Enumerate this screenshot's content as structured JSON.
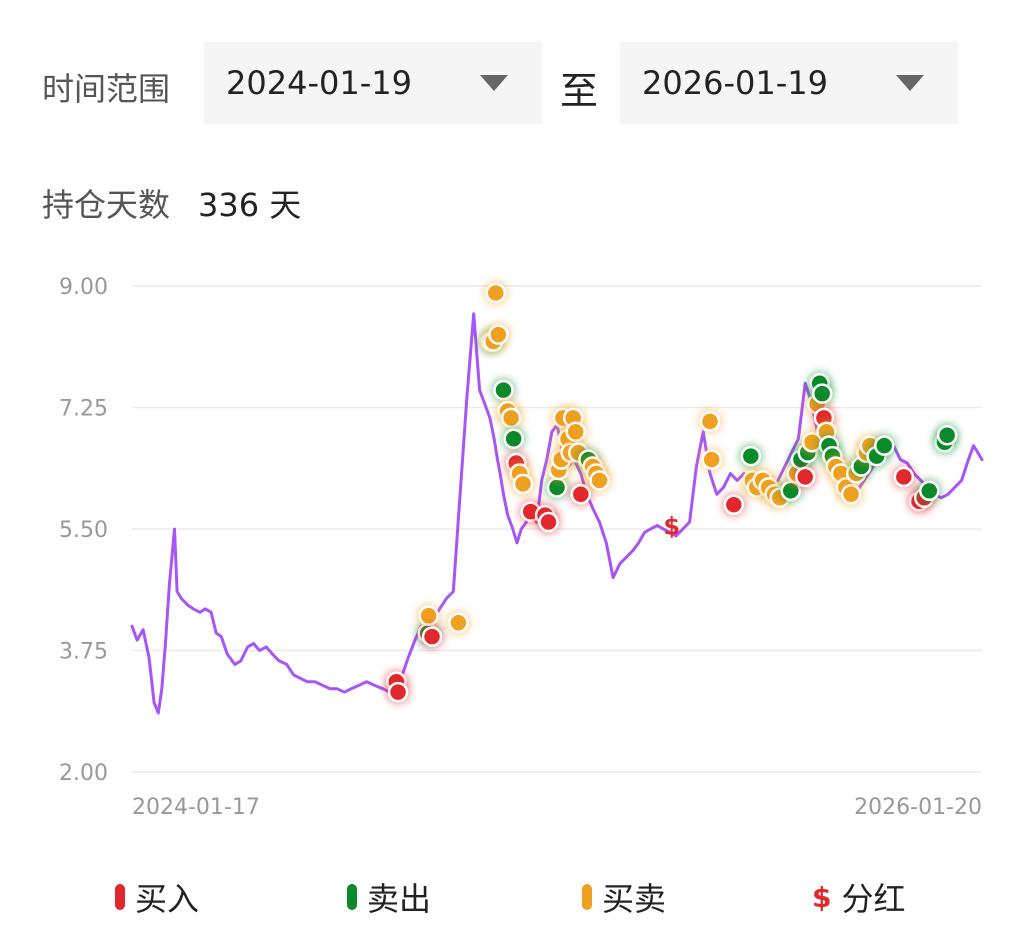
{
  "filter": {
    "label": "时间范围",
    "start_date": "2024-01-19",
    "separator": "至",
    "end_date": "2026-01-19"
  },
  "holding": {
    "label": "持仓天数",
    "value": "336 天"
  },
  "colors": {
    "line": "#a855f7",
    "buy": "#e0282d",
    "sell": "#0a8a2a",
    "both": "#f0a020",
    "dividend": "#e0282d",
    "grid": "#ececec",
    "axis_text": "#999999"
  },
  "legend": [
    {
      "type": "buy",
      "label": "买入"
    },
    {
      "type": "sell",
      "label": "卖出"
    },
    {
      "type": "both",
      "label": "买卖"
    },
    {
      "type": "dividend",
      "label": "分红"
    }
  ],
  "chart_data": {
    "type": "line",
    "x_start_label": "2024-01-17",
    "x_end_label": "2026-01-20",
    "ylim": [
      2.0,
      9.0
    ],
    "yticks": [
      "9.00",
      "7.25",
      "5.50",
      "3.75",
      "2.00"
    ],
    "grid": true,
    "x_range": [
      0,
      100
    ],
    "series": [
      {
        "x": [
          0,
          0.6,
          1.3,
          2.0,
          2.6,
          3.1,
          3.5,
          3.9,
          4.4,
          5.0,
          5.3,
          5.8,
          6.2,
          6.6,
          7.2,
          8.0,
          8.6,
          9.3,
          9.9,
          10.5,
          11.2,
          12.1,
          12.8,
          13.6,
          14.3,
          15.0,
          15.8,
          16.5,
          17.3,
          18.2,
          19.0,
          19.8,
          20.6,
          21.5,
          22.4,
          23.3,
          24.1,
          25.0,
          25.8,
          26.7,
          27.6,
          28.5,
          29.5,
          30.3,
          31.0,
          31.8,
          32.5,
          33.3,
          34.0,
          34.7,
          35.4,
          36.2,
          37.0,
          37.8,
          38.6,
          39.4,
          40.2,
          40.9,
          41.5,
          42.1,
          42.6,
          43.0,
          43.3,
          43.7,
          44.2,
          44.8,
          45.3,
          45.8,
          46.4,
          47.0,
          47.6,
          48.2,
          48.8,
          49.4,
          50.0,
          50.7,
          51.3,
          52.0,
          52.8,
          53.5,
          54.2,
          55.0,
          55.8,
          56.6,
          57.4,
          58.2,
          59.0,
          59.6,
          60.3,
          61.0,
          61.8,
          62.5,
          63.3,
          64.0,
          64.8,
          65.6,
          66.4,
          67.2,
          68.0,
          68.8,
          69.6,
          70.4,
          71.2,
          72.0,
          72.8,
          73.6,
          74.4,
          75.2,
          76.0,
          76.8,
          77.6,
          78.4,
          79.2,
          80.0,
          80.8,
          81.6,
          82.4,
          83.2,
          84.0,
          84.8,
          85.6,
          86.4,
          87.2,
          88.0,
          88.8,
          89.6,
          90.4,
          91.2,
          92.0,
          92.8,
          93.6,
          94.4,
          95.2,
          96.0,
          96.8,
          97.6,
          98.4,
          99.0,
          99.5,
          100
        ],
        "y": [
          4.1,
          3.9,
          4.05,
          3.65,
          3.0,
          2.85,
          3.2,
          3.8,
          4.7,
          5.5,
          4.6,
          4.5,
          4.45,
          4.4,
          4.35,
          4.3,
          4.35,
          4.3,
          4.0,
          3.95,
          3.7,
          3.55,
          3.6,
          3.8,
          3.85,
          3.75,
          3.8,
          3.7,
          3.6,
          3.55,
          3.4,
          3.35,
          3.3,
          3.3,
          3.25,
          3.2,
          3.2,
          3.15,
          3.2,
          3.25,
          3.3,
          3.25,
          3.2,
          3.15,
          3.25,
          3.4,
          3.65,
          3.9,
          4.1,
          4.0,
          4.2,
          4.35,
          4.5,
          4.6,
          6.0,
          7.4,
          8.6,
          7.5,
          7.3,
          7.1,
          6.8,
          6.5,
          6.3,
          6.0,
          5.7,
          5.5,
          5.3,
          5.5,
          5.6,
          5.8,
          5.6,
          6.2,
          6.5,
          6.9,
          7.0,
          6.6,
          6.4,
          6.5,
          6.3,
          6.0,
          5.8,
          5.6,
          5.3,
          4.8,
          5.0,
          5.1,
          5.2,
          5.3,
          5.45,
          5.5,
          5.55,
          5.5,
          5.45,
          5.4,
          5.5,
          5.6,
          6.4,
          6.9,
          6.3,
          6.0,
          6.1,
          6.3,
          6.2,
          6.3,
          6.1,
          6.0,
          6.0,
          6.1,
          6.2,
          6.4,
          6.6,
          6.8,
          7.6,
          7.3,
          6.8,
          6.6,
          6.4,
          6.3,
          6.1,
          6.0,
          6.1,
          6.25,
          6.4,
          6.5,
          6.6,
          6.7,
          6.5,
          6.45,
          6.3,
          6.2,
          6.1,
          6.0,
          5.95,
          6.0,
          6.1,
          6.2,
          6.5,
          6.7,
          6.6,
          6.5
        ],
        "markers": [
          {
            "x": 31.1,
            "y": 3.3,
            "type": "buy"
          },
          {
            "x": 31.3,
            "y": 3.15,
            "type": "buy"
          },
          {
            "x": 34.8,
            "y": 4.0,
            "type": "sell"
          },
          {
            "x": 34.9,
            "y": 4.25,
            "type": "both"
          },
          {
            "x": 35.3,
            "y": 3.95,
            "type": "buy"
          },
          {
            "x": 38.4,
            "y": 4.15,
            "type": "both"
          },
          {
            "x": 42.2,
            "y": 8.2,
            "type": "sell"
          },
          {
            "x": 42.5,
            "y": 8.2,
            "type": "both"
          },
          {
            "x": 42.8,
            "y": 8.9,
            "type": "both"
          },
          {
            "x": 43.1,
            "y": 8.3,
            "type": "both"
          },
          {
            "x": 43.7,
            "y": 7.5,
            "type": "sell"
          },
          {
            "x": 44.2,
            "y": 7.2,
            "type": "both"
          },
          {
            "x": 44.6,
            "y": 7.1,
            "type": "both"
          },
          {
            "x": 44.9,
            "y": 6.8,
            "type": "sell"
          },
          {
            "x": 45.2,
            "y": 6.45,
            "type": "buy"
          },
          {
            "x": 45.6,
            "y": 6.3,
            "type": "both"
          },
          {
            "x": 46.0,
            "y": 6.15,
            "type": "both"
          },
          {
            "x": 46.9,
            "y": 5.75,
            "type": "buy"
          },
          {
            "x": 48.6,
            "y": 5.7,
            "type": "buy"
          },
          {
            "x": 49.0,
            "y": 5.6,
            "type": "buy"
          },
          {
            "x": 50.0,
            "y": 6.1,
            "type": "sell"
          },
          {
            "x": 50.2,
            "y": 6.35,
            "type": "both"
          },
          {
            "x": 50.5,
            "y": 6.5,
            "type": "both"
          },
          {
            "x": 50.7,
            "y": 7.1,
            "type": "both"
          },
          {
            "x": 51.3,
            "y": 6.8,
            "type": "both"
          },
          {
            "x": 51.6,
            "y": 6.6,
            "type": "both"
          },
          {
            "x": 51.9,
            "y": 7.1,
            "type": "both"
          },
          {
            "x": 52.2,
            "y": 6.9,
            "type": "both"
          },
          {
            "x": 52.5,
            "y": 6.6,
            "type": "both"
          },
          {
            "x": 52.8,
            "y": 6.0,
            "type": "buy"
          },
          {
            "x": 53.7,
            "y": 6.5,
            "type": "sell"
          },
          {
            "x": 54.2,
            "y": 6.4,
            "type": "both"
          },
          {
            "x": 54.6,
            "y": 6.3,
            "type": "both"
          },
          {
            "x": 55.0,
            "y": 6.2,
            "type": "both"
          },
          {
            "x": 68.0,
            "y": 7.05,
            "type": "both"
          },
          {
            "x": 68.2,
            "y": 6.5,
            "type": "both"
          },
          {
            "x": 70.8,
            "y": 5.85,
            "type": "buy"
          },
          {
            "x": 72.8,
            "y": 6.55,
            "type": "sell"
          },
          {
            "x": 73.0,
            "y": 6.2,
            "type": "both"
          },
          {
            "x": 73.5,
            "y": 6.1,
            "type": "both"
          },
          {
            "x": 74.2,
            "y": 6.2,
            "type": "both"
          },
          {
            "x": 74.9,
            "y": 6.1,
            "type": "both"
          },
          {
            "x": 75.6,
            "y": 6.0,
            "type": "both"
          },
          {
            "x": 76.2,
            "y": 5.95,
            "type": "both"
          },
          {
            "x": 77.5,
            "y": 6.05,
            "type": "sell"
          },
          {
            "x": 78.2,
            "y": 6.3,
            "type": "both"
          },
          {
            "x": 78.7,
            "y": 6.5,
            "type": "sell"
          },
          {
            "x": 79.2,
            "y": 6.25,
            "type": "buy"
          },
          {
            "x": 79.5,
            "y": 6.6,
            "type": "sell"
          },
          {
            "x": 80.0,
            "y": 6.75,
            "type": "both"
          },
          {
            "x": 80.6,
            "y": 7.3,
            "type": "both"
          },
          {
            "x": 80.9,
            "y": 7.6,
            "type": "sell"
          },
          {
            "x": 81.2,
            "y": 7.45,
            "type": "sell"
          },
          {
            "x": 81.4,
            "y": 7.1,
            "type": "buy"
          },
          {
            "x": 81.7,
            "y": 6.9,
            "type": "both"
          },
          {
            "x": 82.0,
            "y": 6.7,
            "type": "sell"
          },
          {
            "x": 82.4,
            "y": 6.55,
            "type": "sell"
          },
          {
            "x": 82.8,
            "y": 6.4,
            "type": "both"
          },
          {
            "x": 83.4,
            "y": 6.3,
            "type": "both"
          },
          {
            "x": 84.0,
            "y": 6.1,
            "type": "both"
          },
          {
            "x": 84.6,
            "y": 6.0,
            "type": "both"
          },
          {
            "x": 85.2,
            "y": 6.3,
            "type": "both"
          },
          {
            "x": 85.8,
            "y": 6.4,
            "type": "sell"
          },
          {
            "x": 86.4,
            "y": 6.6,
            "type": "both"
          },
          {
            "x": 86.8,
            "y": 6.7,
            "type": "both"
          },
          {
            "x": 87.6,
            "y": 6.55,
            "type": "sell"
          },
          {
            "x": 88.5,
            "y": 6.7,
            "type": "sell"
          },
          {
            "x": 90.8,
            "y": 6.25,
            "type": "buy"
          },
          {
            "x": 92.6,
            "y": 5.9,
            "type": "buy"
          },
          {
            "x": 93.2,
            "y": 5.95,
            "type": "buy"
          },
          {
            "x": 93.8,
            "y": 6.05,
            "type": "sell"
          },
          {
            "x": 95.6,
            "y": 6.75,
            "type": "sell"
          },
          {
            "x": 95.9,
            "y": 6.85,
            "type": "sell"
          },
          {
            "x": 63.5,
            "y": 5.55,
            "type": "dividend"
          }
        ]
      }
    ]
  }
}
